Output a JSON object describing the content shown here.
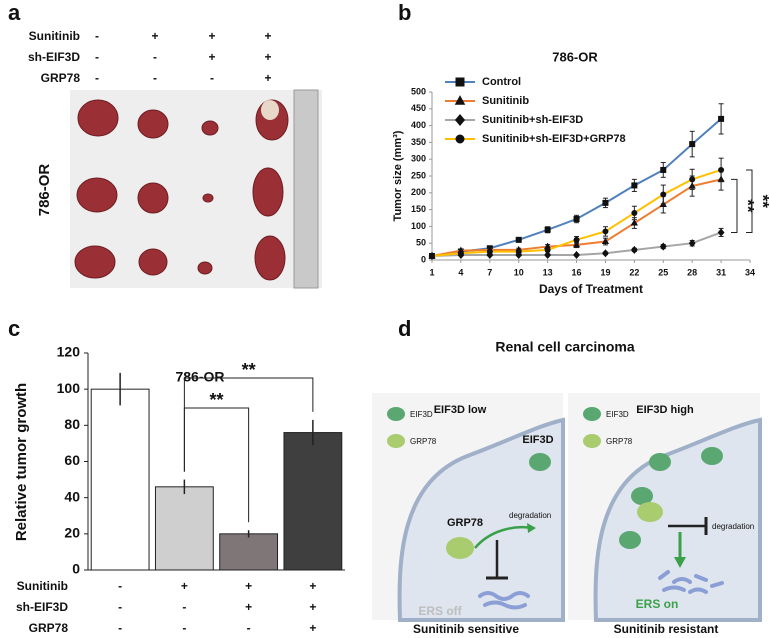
{
  "panel_labels": [
    "a",
    "b",
    "c",
    "d"
  ],
  "panel_a": {
    "cell_line": "786-OR",
    "conditions": [
      {
        "label": "Sunitinib",
        "marks": [
          "-",
          "+",
          "+",
          "+"
        ]
      },
      {
        "label": "sh-EIF3D",
        "marks": [
          "-",
          "-",
          "+",
          "+"
        ]
      },
      {
        "label": "GRP78",
        "marks": [
          "-",
          "-",
          "-",
          "+"
        ]
      }
    ]
  },
  "chart_data": [
    {
      "type": "line",
      "title": "786-OR",
      "x_label": "Days of Treatment",
      "y_label": "Tumor size (mm³)",
      "x": [
        1,
        4,
        7,
        10,
        13,
        16,
        19,
        22,
        25,
        28,
        31
      ],
      "xlim": [
        1,
        34
      ],
      "xticks": [
        1,
        4,
        7,
        10,
        13,
        16,
        19,
        22,
        25,
        28,
        31,
        34
      ],
      "ylim": [
        0,
        500
      ],
      "yticks": [
        0,
        50,
        100,
        150,
        200,
        250,
        300,
        350,
        400,
        450,
        500
      ],
      "legend": "upper left",
      "series": [
        {
          "name": "Control",
          "color": "#4f81bd",
          "marker": "square",
          "values": [
            12,
            25,
            35,
            60,
            90,
            122,
            170,
            222,
            268,
            345,
            420
          ],
          "errors": [
            4,
            5,
            6,
            6,
            9,
            11,
            14,
            18,
            22,
            38,
            45
          ]
        },
        {
          "name": "Sunitinib",
          "color": "#ed7d31",
          "marker": "triangle",
          "values": [
            12,
            28,
            30,
            30,
            40,
            45,
            55,
            110,
            165,
            220,
            240
          ],
          "errors": [
            4,
            5,
            5,
            5,
            6,
            8,
            10,
            16,
            25,
            30,
            32
          ]
        },
        {
          "name": "Sunitinib+sh-EIF3D",
          "color": "#a5a5a5",
          "marker": "diamond",
          "values": [
            12,
            15,
            15,
            15,
            15,
            15,
            20,
            30,
            40,
            50,
            82
          ],
          "errors": [
            3,
            3,
            3,
            3,
            3,
            3,
            4,
            5,
            6,
            8,
            12
          ]
        },
        {
          "name": "Sunitinib+sh-EIF3D+GRP78",
          "color": "#ffc000",
          "marker": "circle",
          "values": [
            12,
            20,
            25,
            25,
            30,
            60,
            85,
            140,
            195,
            240,
            268
          ],
          "errors": [
            4,
            4,
            5,
            5,
            6,
            10,
            14,
            20,
            28,
            30,
            35
          ]
        }
      ],
      "annotations": [
        "**",
        "**"
      ]
    },
    {
      "type": "bar",
      "title": "786-OR",
      "y_label": "Relative tumor growth",
      "values": [
        100,
        46,
        20,
        76
      ],
      "errors": [
        9,
        4,
        2,
        7
      ],
      "colors": [
        "#ffffff",
        "#d0cfcf",
        "#7f7777",
        "#3f3f3f"
      ],
      "ylim": [
        0,
        120
      ],
      "yticks": [
        0,
        20,
        40,
        60,
        80,
        100,
        120
      ],
      "conditions": [
        {
          "label": "Sunitinib",
          "marks": [
            "-",
            "+",
            "+",
            "+"
          ]
        },
        {
          "label": "sh-EIF3D",
          "marks": [
            "-",
            "-",
            "+",
            "+"
          ]
        },
        {
          "label": "GRP78",
          "marks": [
            "-",
            "-",
            "-",
            "+"
          ]
        }
      ],
      "annotations": [
        "**",
        "**"
      ]
    }
  ],
  "panel_d": {
    "title": "Renal cell carcinoma",
    "left": {
      "heading": "EIF3D low",
      "legend": [
        "EIF3D",
        "GRP78"
      ],
      "eif3d": "EIF3D",
      "grp78": "GRP78",
      "process": "degradation",
      "state": "ERS off",
      "outcome": "Sunitinib sensitive"
    },
    "right": {
      "heading": "EIF3D high",
      "legend": [
        "EIF3D",
        "GRP78"
      ],
      "process": "degradation",
      "state": "ERS on",
      "outcome": "Sunitinib resistant"
    }
  }
}
